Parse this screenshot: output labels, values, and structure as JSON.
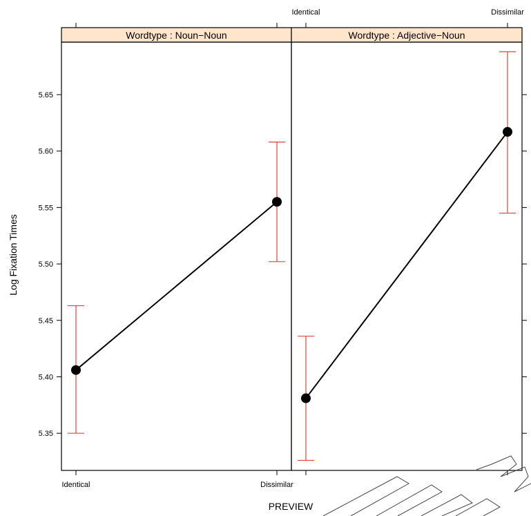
{
  "chart_data": {
    "type": "line",
    "ylabel": "Log Fixation Times",
    "xlabel": "PREVIEW",
    "x_categories": [
      "Identical",
      "Dissimilar"
    ],
    "ylim": [
      5.315,
      5.695
    ],
    "yticks": [
      "5.35",
      "5.40",
      "5.45",
      "5.50",
      "5.55",
      "5.60",
      "5.65"
    ],
    "panels": [
      {
        "strip_label": "Wordtype : Noun−Noun",
        "points": [
          {
            "x": "Identical",
            "y": 5.406,
            "lower": 5.35,
            "upper": 5.463
          },
          {
            "x": "Dissimilar",
            "y": 5.555,
            "lower": 5.502,
            "upper": 5.608
          }
        ]
      },
      {
        "strip_label": "Wordtype : Adjective−Noun",
        "points": [
          {
            "x": "Identical",
            "y": 5.381,
            "lower": 5.326,
            "upper": 5.436
          },
          {
            "x": "Dissimilar",
            "y": 5.617,
            "lower": 5.545,
            "upper": 5.688
          }
        ]
      }
    ],
    "colors": {
      "errorbar": "#e8413a",
      "strip": "#ffe5cc",
      "line": "#000000"
    }
  }
}
